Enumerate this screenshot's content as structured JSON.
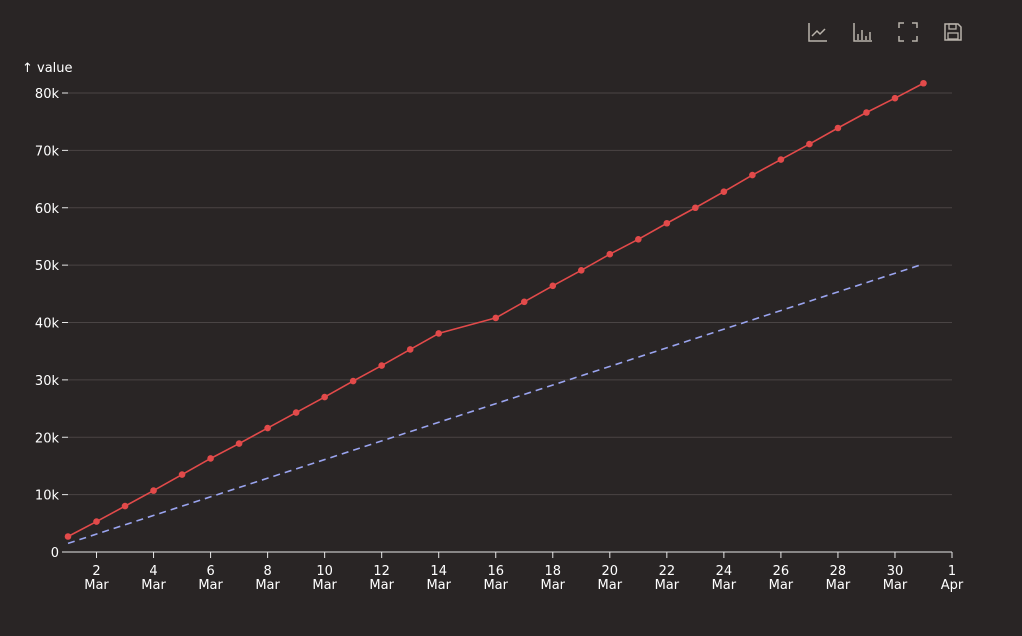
{
  "toolbar": {
    "buttons": [
      {
        "name": "line-chart-icon",
        "title": "Switch to line chart"
      },
      {
        "name": "bar-chart-icon",
        "title": "Switch to bar chart"
      },
      {
        "name": "fullscreen-icon",
        "title": "Full screen"
      },
      {
        "name": "save-icon",
        "title": "Save as image"
      }
    ],
    "icon_color": "#b9b3ab"
  },
  "chart_data": {
    "type": "line",
    "title": "",
    "ylabel": "↑ value",
    "xlabel": "",
    "grid": true,
    "legend": "none",
    "ylim": [
      0,
      80000
    ],
    "xlim": [
      "2023-03-01",
      "2023-04-01"
    ],
    "y_ticks": [
      {
        "value": 0,
        "label": "0"
      },
      {
        "value": 10000,
        "label": "10k"
      },
      {
        "value": 20000,
        "label": "20k"
      },
      {
        "value": 30000,
        "label": "30k"
      },
      {
        "value": 40000,
        "label": "40k"
      },
      {
        "value": 50000,
        "label": "50k"
      },
      {
        "value": 60000,
        "label": "60k"
      },
      {
        "value": 70000,
        "label": "70k"
      },
      {
        "value": 80000,
        "label": "80k"
      }
    ],
    "x_ticks": [
      {
        "date": "2023-03-02",
        "day": "2",
        "month": "Mar"
      },
      {
        "date": "2023-03-04",
        "day": "4",
        "month": "Mar"
      },
      {
        "date": "2023-03-06",
        "day": "6",
        "month": "Mar"
      },
      {
        "date": "2023-03-08",
        "day": "8",
        "month": "Mar"
      },
      {
        "date": "2023-03-10",
        "day": "10",
        "month": "Mar"
      },
      {
        "date": "2023-03-12",
        "day": "12",
        "month": "Mar"
      },
      {
        "date": "2023-03-14",
        "day": "14",
        "month": "Mar"
      },
      {
        "date": "2023-03-16",
        "day": "16",
        "month": "Mar"
      },
      {
        "date": "2023-03-18",
        "day": "18",
        "month": "Mar"
      },
      {
        "date": "2023-03-20",
        "day": "20",
        "month": "Mar"
      },
      {
        "date": "2023-03-22",
        "day": "22",
        "month": "Mar"
      },
      {
        "date": "2023-03-24",
        "day": "24",
        "month": "Mar"
      },
      {
        "date": "2023-03-26",
        "day": "26",
        "month": "Mar"
      },
      {
        "date": "2023-03-28",
        "day": "28",
        "month": "Mar"
      },
      {
        "date": "2023-03-30",
        "day": "30",
        "month": "Mar"
      },
      {
        "date": "2023-04-01",
        "day": "1",
        "month": "Apr"
      }
    ],
    "series": [
      {
        "color": "#e24a4a",
        "style": "solid",
        "markers": true,
        "points": [
          {
            "x": "2023-03-01",
            "y": 2700
          },
          {
            "x": "2023-03-02",
            "y": 5300
          },
          {
            "x": "2023-03-03",
            "y": 8000
          },
          {
            "x": "2023-03-04",
            "y": 10700
          },
          {
            "x": "2023-03-05",
            "y": 13500
          },
          {
            "x": "2023-03-06",
            "y": 16300
          },
          {
            "x": "2023-03-07",
            "y": 18900
          },
          {
            "x": "2023-03-08",
            "y": 21600
          },
          {
            "x": "2023-03-09",
            "y": 24300
          },
          {
            "x": "2023-03-10",
            "y": 27000
          },
          {
            "x": "2023-03-11",
            "y": 29800
          },
          {
            "x": "2023-03-12",
            "y": 32500
          },
          {
            "x": "2023-03-13",
            "y": 35300
          },
          {
            "x": "2023-03-14",
            "y": 38100
          },
          {
            "x": "2023-03-16",
            "y": 40800
          },
          {
            "x": "2023-03-17",
            "y": 43600
          },
          {
            "x": "2023-03-18",
            "y": 46400
          },
          {
            "x": "2023-03-19",
            "y": 49100
          },
          {
            "x": "2023-03-20",
            "y": 51900
          },
          {
            "x": "2023-03-21",
            "y": 54500
          },
          {
            "x": "2023-03-22",
            "y": 57300
          },
          {
            "x": "2023-03-23",
            "y": 60000
          },
          {
            "x": "2023-03-24",
            "y": 62800
          },
          {
            "x": "2023-03-25",
            "y": 65700
          },
          {
            "x": "2023-03-26",
            "y": 68400
          },
          {
            "x": "2023-03-27",
            "y": 71100
          },
          {
            "x": "2023-03-28",
            "y": 73900
          },
          {
            "x": "2023-03-29",
            "y": 76600
          },
          {
            "x": "2023-03-30",
            "y": 79100
          },
          {
            "x": "2023-03-31",
            "y": 81700
          }
        ]
      },
      {
        "color": "#9aa4ef",
        "style": "dashed",
        "markers": false,
        "points": [
          {
            "x": "2023-03-01",
            "y": 1500
          },
          {
            "x": "2023-03-31",
            "y": 50200
          }
        ]
      }
    ]
  }
}
